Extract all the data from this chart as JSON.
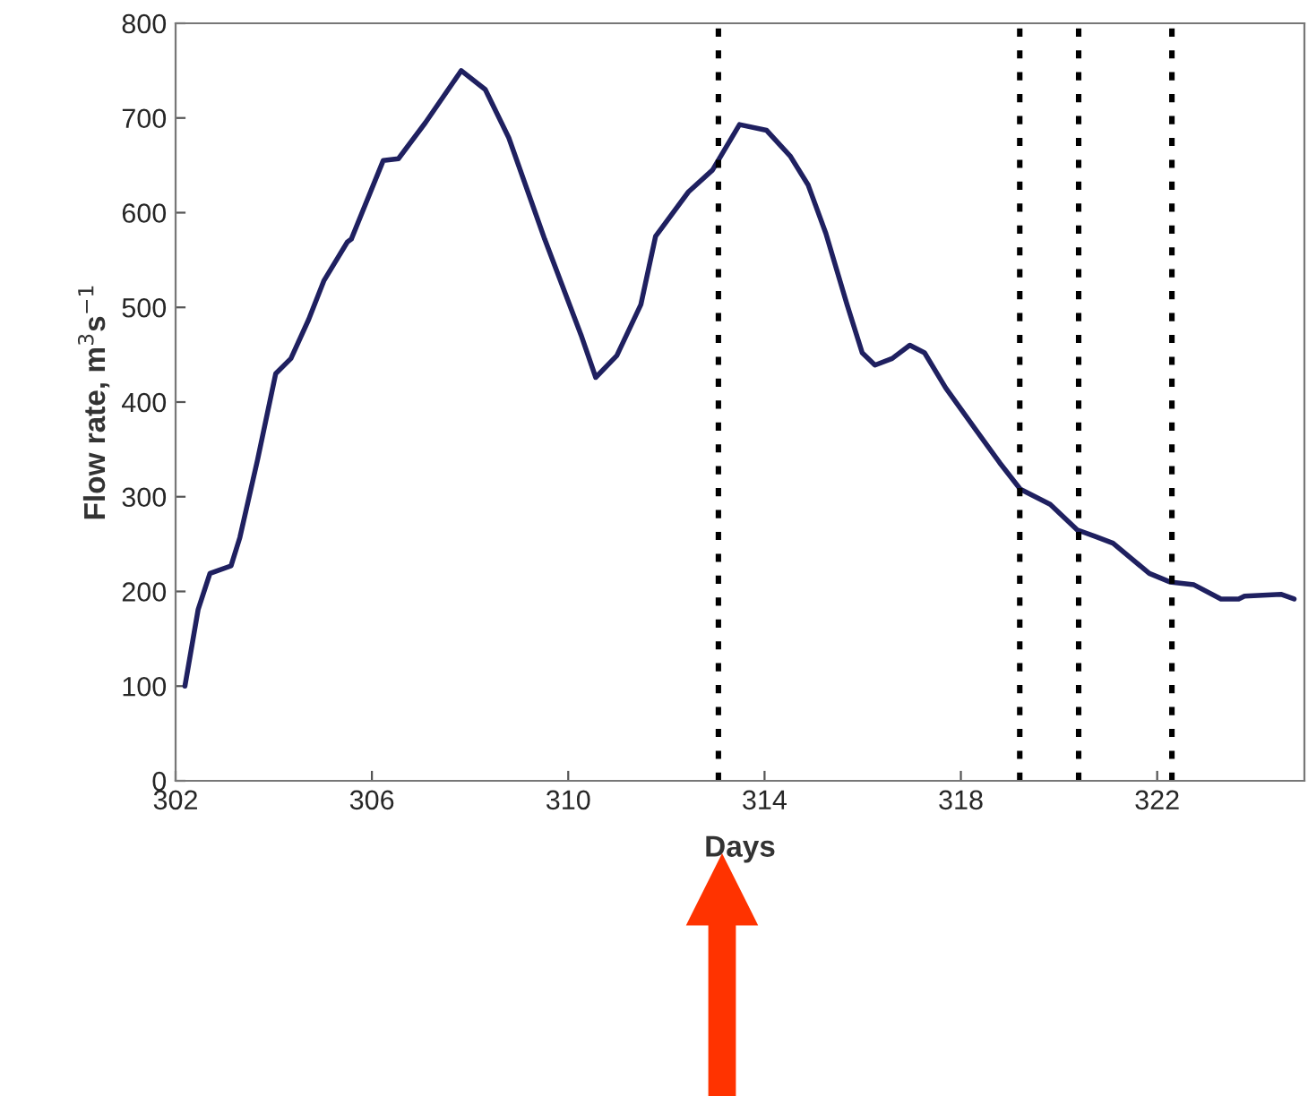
{
  "chart_data": {
    "type": "line",
    "xlabel": "Days",
    "ylabel": "Flow rate, m$^{3}$s$^{−1}$",
    "xlim": [
      302,
      325
    ],
    "xticks": [
      302,
      306,
      310,
      314,
      318,
      322
    ],
    "ylim": [
      0,
      800
    ],
    "yticks": [
      0,
      100,
      200,
      300,
      400,
      500,
      600,
      700,
      800
    ],
    "grid": false,
    "legend": false,
    "marker": "none",
    "line_style": "solid",
    "x": [
      302.19,
      302.46,
      302.7,
      303.13,
      303.31,
      303.67,
      304.04,
      304.35,
      304.71,
      305.02,
      305.5,
      305.58,
      306.23,
      306.54,
      307.09,
      307.82,
      308.31,
      308.79,
      309.52,
      310.26,
      310.56,
      310.99,
      311.48,
      311.78,
      312.45,
      312.94,
      313.49,
      314.04,
      314.52,
      314.89,
      315.25,
      315.68,
      315.99,
      316.25,
      316.6,
      316.96,
      317.26,
      317.69,
      318.3,
      318.79,
      319.21,
      319.82,
      320.37,
      320.74,
      321.1,
      321.84,
      322.26,
      322.75,
      323.3,
      323.66,
      323.78,
      324.52,
      324.79
    ],
    "series": [
      {
        "color": "#1f2060",
        "values": [
          100,
          181,
          219,
          227,
          257,
          339,
          430,
          446,
          487,
          528,
          569,
          572,
          655,
          657,
          695,
          750,
          730,
          679,
          572,
          471,
          426,
          449,
          503,
          575,
          622,
          645,
          693,
          687,
          660,
          629,
          578,
          503,
          452,
          439,
          446,
          460,
          452,
          415,
          371,
          336,
          308,
          292,
          265,
          258,
          251,
          219,
          210,
          207,
          192,
          192,
          195,
          197,
          192
        ]
      }
    ],
    "ref_lines": [
      {
        "axis": "x",
        "value": 313.06,
        "color": "#000000",
        "line_style": "dotted"
      },
      {
        "axis": "x",
        "value": 319.2,
        "color": "#000000",
        "line_style": "dotted"
      },
      {
        "axis": "x",
        "value": 320.4,
        "color": "#000000",
        "line_style": "dotted"
      },
      {
        "axis": "x",
        "value": 322.3,
        "color": "#000000",
        "line_style": "dotted"
      }
    ]
  }
}
